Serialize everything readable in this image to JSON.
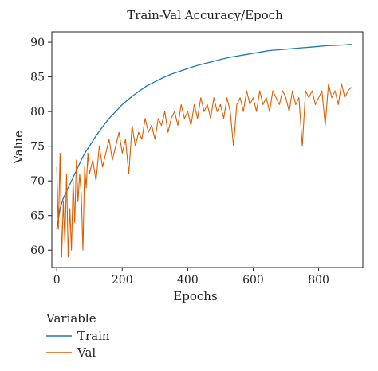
{
  "chart_data": {
    "type": "line",
    "title": "Train-Val Accuracy/Epoch",
    "xlabel": "Epochs",
    "ylabel": "Value",
    "xlim": [
      -15,
      935
    ],
    "ylim": [
      57.5,
      91.5
    ],
    "xticks": [
      0,
      200,
      400,
      600,
      800
    ],
    "yticks": [
      60,
      65,
      70,
      75,
      80,
      85,
      90
    ],
    "grid": false,
    "legend": {
      "title": "Variable",
      "placement": "below-left"
    },
    "series": [
      {
        "name": "Train",
        "color": "#1f77b4",
        "x": [
          0,
          10,
          20,
          30,
          40,
          50,
          60,
          70,
          80,
          90,
          100,
          120,
          140,
          160,
          180,
          200,
          225,
          250,
          275,
          300,
          325,
          350,
          375,
          400,
          425,
          450,
          475,
          500,
          525,
          550,
          575,
          600,
          625,
          650,
          675,
          700,
          725,
          750,
          775,
          800,
          825,
          850,
          875,
          900
        ],
        "y": [
          63.0,
          66.0,
          67.5,
          68.5,
          69.5,
          70.5,
          71.5,
          72.5,
          73.5,
          74.3,
          75.0,
          76.5,
          77.8,
          79.0,
          80.0,
          81.0,
          82.0,
          82.9,
          83.7,
          84.3,
          84.9,
          85.4,
          85.8,
          86.2,
          86.6,
          86.9,
          87.2,
          87.5,
          87.8,
          88.0,
          88.2,
          88.4,
          88.6,
          88.8,
          88.9,
          89.0,
          89.1,
          89.2,
          89.3,
          89.4,
          89.5,
          89.55,
          89.6,
          89.7
        ]
      },
      {
        "name": "Val",
        "color": "#d95f02",
        "x": [
          0,
          5,
          10,
          15,
          20,
          25,
          30,
          35,
          40,
          45,
          50,
          55,
          60,
          65,
          70,
          75,
          80,
          85,
          90,
          95,
          100,
          110,
          120,
          130,
          140,
          150,
          160,
          170,
          180,
          190,
          200,
          210,
          220,
          230,
          240,
          250,
          260,
          270,
          280,
          290,
          300,
          310,
          320,
          330,
          340,
          350,
          360,
          370,
          380,
          390,
          400,
          410,
          420,
          430,
          440,
          450,
          460,
          470,
          480,
          490,
          500,
          510,
          520,
          530,
          540,
          550,
          560,
          570,
          580,
          590,
          600,
          610,
          620,
          630,
          640,
          650,
          660,
          670,
          680,
          690,
          700,
          710,
          720,
          730,
          740,
          750,
          760,
          770,
          780,
          790,
          800,
          810,
          820,
          830,
          840,
          850,
          860,
          870,
          880,
          890,
          900
        ],
        "y": [
          72,
          63,
          74,
          59,
          67,
          61,
          71,
          59,
          66,
          60,
          70,
          64,
          73,
          67,
          71,
          68,
          60,
          72,
          69,
          74,
          71,
          73,
          70,
          75,
          72,
          74,
          76,
          73,
          75,
          77,
          74,
          76,
          71,
          78,
          75,
          77,
          76,
          79,
          77,
          78,
          76,
          79,
          78,
          80,
          77,
          79,
          80,
          78,
          81,
          79,
          80,
          78,
          81,
          79,
          82,
          80,
          81,
          79,
          82,
          80,
          81,
          79,
          82,
          80,
          75,
          81,
          82,
          80,
          83,
          81,
          82,
          80,
          83,
          81,
          82,
          80,
          83,
          82,
          81,
          83,
          82,
          80,
          83,
          81,
          82,
          75,
          83,
          82,
          83,
          81,
          82,
          83,
          78,
          84,
          82,
          83,
          81,
          84,
          82,
          83,
          83.5
        ]
      }
    ]
  }
}
